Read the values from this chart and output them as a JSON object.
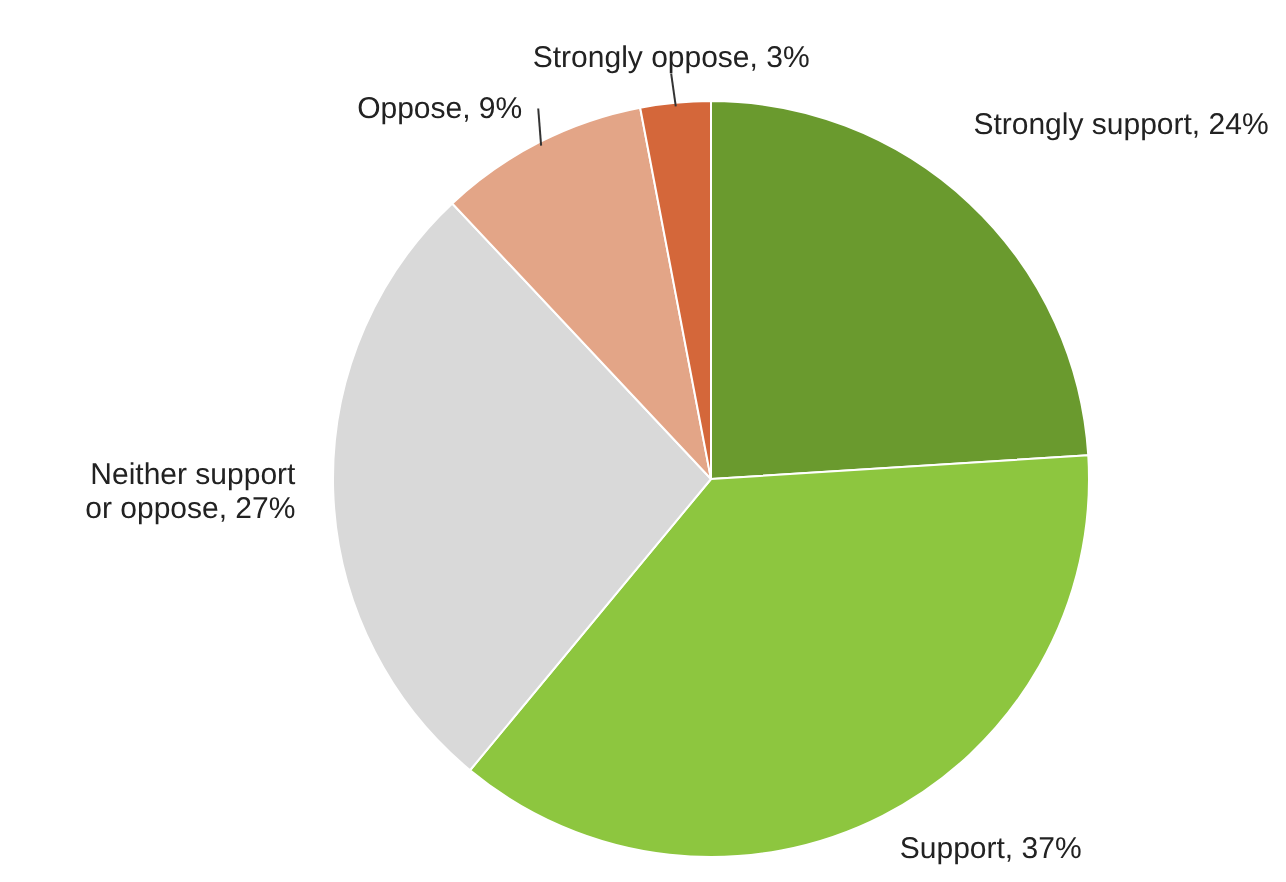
{
  "chart_data": {
    "type": "pie",
    "categories": [
      "Strongly support",
      "Support",
      "Neither support or oppose",
      "Oppose",
      "Strongly oppose"
    ],
    "values": [
      24,
      37,
      27,
      9,
      3
    ],
    "colors": [
      "#6a9a2e",
      "#8dc63f",
      "#d9d9d9",
      "#e3a587",
      "#d4673a"
    ],
    "value_labels": [
      "24%",
      "37%",
      "27%",
      "9%",
      "3%"
    ]
  }
}
